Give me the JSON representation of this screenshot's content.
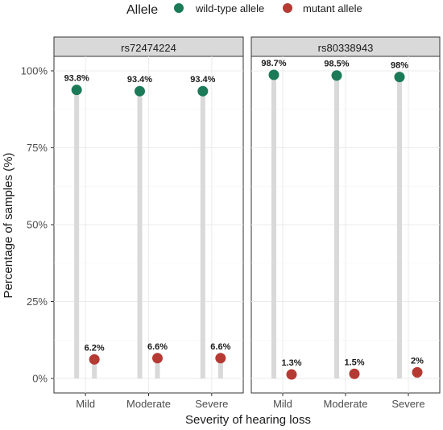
{
  "chart_data": {
    "type": "lollipop",
    "xlabel": "Severity of hearing loss",
    "ylabel": "Percentage of samples (%)",
    "ylim": [
      0,
      100
    ],
    "yticks": [
      "0%",
      "25%",
      "50%",
      "75%",
      "100%"
    ],
    "ytick_values": [
      0,
      25,
      50,
      75,
      100
    ],
    "categories": [
      "Mild",
      "Moderate",
      "Severe"
    ],
    "legend": {
      "title": "Allele",
      "placement": "top",
      "items": [
        {
          "name": "wild-type allele",
          "color": "#1b7a57"
        },
        {
          "name": "mutant allele",
          "color": "#b53a33"
        }
      ]
    },
    "grid": true,
    "facets": [
      {
        "name": "rs72474224",
        "series": [
          {
            "name": "wild-type allele",
            "values": [
              93.8,
              93.4,
              93.4
            ],
            "labels": [
              "93.8%",
              "93.4%",
              "93.4%"
            ]
          },
          {
            "name": "mutant allele",
            "values": [
              6.2,
              6.6,
              6.6
            ],
            "labels": [
              "6.2%",
              "6.6%",
              "6.6%"
            ]
          }
        ]
      },
      {
        "name": "rs80338943",
        "series": [
          {
            "name": "wild-type allele",
            "values": [
              98.7,
              98.5,
              98.0
            ],
            "labels": [
              "98.7%",
              "98.5%",
              "98%"
            ]
          },
          {
            "name": "mutant allele",
            "values": [
              1.3,
              1.5,
              2.0
            ],
            "labels": [
              "1.3%",
              "1.5%",
              "2%"
            ]
          }
        ]
      }
    ]
  }
}
